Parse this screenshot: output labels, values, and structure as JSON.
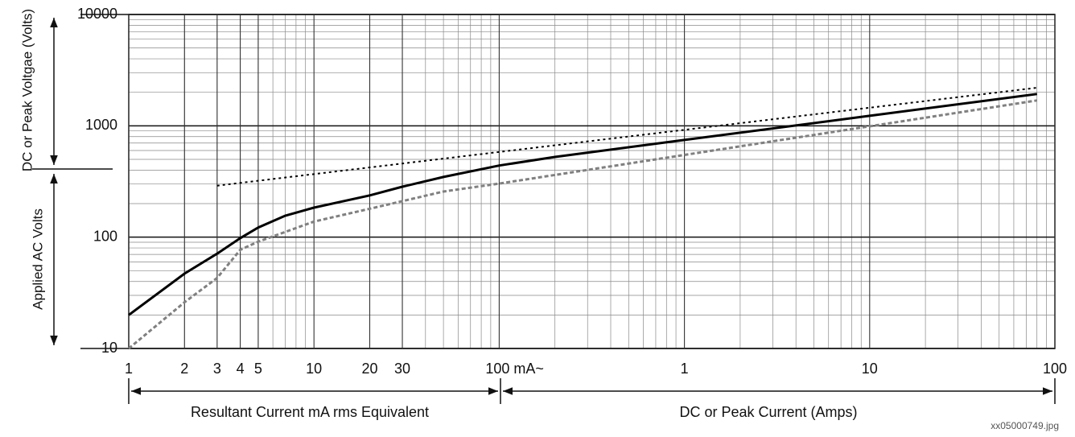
{
  "chart_data": {
    "type": "line",
    "x_log": true,
    "y_log": true,
    "minor_grid": true,
    "y_label_top": "DC or Peak Voltgae (Volts)",
    "y_label_bottom": "Applied AC Volts",
    "x_label_left": "Resultant Current mA rms Equivalent",
    "x_label_right": "DC or Peak Current (Amps)",
    "caption": "xx05000749.jpg",
    "xlim": [
      1,
      100000
    ],
    "ylim": [
      10,
      10000
    ],
    "xticks": [
      1,
      2,
      3,
      4,
      5,
      10,
      20,
      30,
      {
        "value": 100,
        "label": "100 mA~"
      },
      {
        "value": 1000,
        "label": "1"
      },
      {
        "value": 10000,
        "label": "10"
      },
      {
        "value": 100000,
        "label": "100"
      }
    ],
    "yticks": [
      10,
      100,
      1000,
      10000
    ],
    "series": [
      {
        "color": "#000000",
        "line_style": "solid",
        "width": 3,
        "x": [
          1,
          2,
          3,
          4,
          5,
          7,
          10,
          20,
          30,
          50,
          100,
          200,
          1000,
          10000,
          80000
        ],
        "values": [
          20,
          47,
          71,
          98,
          122,
          156,
          184,
          237,
          284,
          347,
          440,
          525,
          746,
          1230,
          1930
        ]
      },
      {
        "color": "#000000",
        "line_style": "dotted",
        "width": 2,
        "x": [
          3,
          80000
        ],
        "values": [
          290,
          2200
        ]
      },
      {
        "color": "#808080",
        "line_style": "dashed",
        "width": 3,
        "x": [
          1,
          2,
          3,
          4,
          5,
          10,
          20,
          50,
          100,
          80000
        ],
        "values": [
          10,
          26,
          43,
          77,
          91,
          138,
          180,
          257,
          303,
          1690
        ]
      }
    ]
  }
}
